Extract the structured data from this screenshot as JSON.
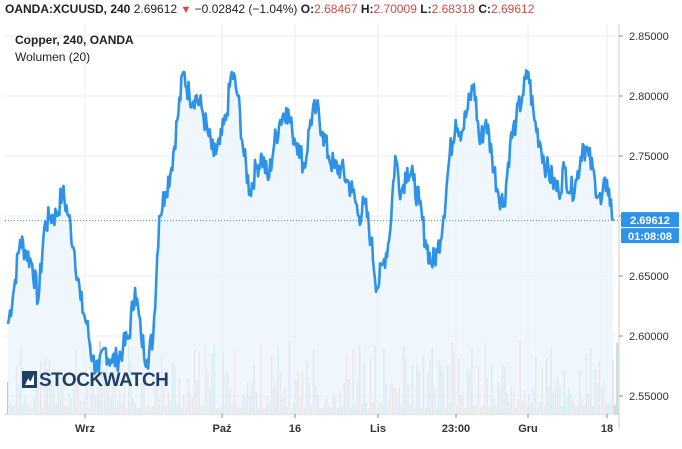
{
  "header": {
    "symbol": "OANDA:XCUUSD, 240",
    "last": "2.69612",
    "change": "−0.02842 (−1.04%)",
    "open_label": "O:",
    "open": "2.68467",
    "high_label": "H:",
    "high": "2.70009",
    "low_label": "L:",
    "low": "2.68318",
    "close_label": "C:",
    "close": "2.69612"
  },
  "legend": {
    "title": "Copper, 240, OANDA",
    "volume": "Wolumen (20)"
  },
  "watermark": "STOCKWATCH",
  "price_badge": "2.69612",
  "timer_badge": "01:08:08",
  "colors": {
    "line": "#2e93e6",
    "area": "#eaf4fc",
    "badge": "#2e93e6",
    "volume_up": "#a9d4d0",
    "volume_down": "#f0b5b2",
    "grid": "#e9eef3"
  },
  "chart_data": {
    "type": "area",
    "title": "Copper, 240, OANDA",
    "x_ticks": [
      "Wrz",
      "Paź",
      "16",
      "Lis",
      "23:00",
      "Gru",
      "18"
    ],
    "y_ticks": [
      2.85,
      2.8,
      2.75,
      2.7,
      2.65,
      2.6,
      2.55
    ],
    "ylim": [
      2.535,
      2.86
    ],
    "y_tick_labels": [
      "2.85000",
      "2.80000",
      "2.75000",
      "2.70000",
      "2.65000",
      "2.60000",
      "2.55000"
    ],
    "last_value": 2.69612,
    "grid": true,
    "series": [
      {
        "name": "Copper",
        "x_range": [
          0,
          100
        ],
        "keypoints": [
          [
            0,
            2.61
          ],
          [
            1,
            2.64
          ],
          [
            2,
            2.68
          ],
          [
            3,
            2.67
          ],
          [
            4,
            2.66
          ],
          [
            5,
            2.63
          ],
          [
            6,
            2.69
          ],
          [
            7,
            2.7
          ],
          [
            8,
            2.7
          ],
          [
            9,
            2.72
          ],
          [
            10,
            2.7
          ],
          [
            11,
            2.67
          ],
          [
            12,
            2.63
          ],
          [
            13,
            2.61
          ],
          [
            14,
            2.58
          ],
          [
            15,
            2.57
          ],
          [
            16,
            2.59
          ],
          [
            17,
            2.58
          ],
          [
            18,
            2.58
          ],
          [
            19,
            2.59
          ],
          [
            20,
            2.6
          ],
          [
            21,
            2.64
          ],
          [
            22,
            2.6
          ],
          [
            23,
            2.58
          ],
          [
            24,
            2.6
          ],
          [
            25,
            2.7
          ],
          [
            26,
            2.72
          ],
          [
            27,
            2.74
          ],
          [
            28,
            2.78
          ],
          [
            29,
            2.82
          ],
          [
            30,
            2.8
          ],
          [
            31,
            2.8
          ],
          [
            32,
            2.79
          ],
          [
            33,
            2.77
          ],
          [
            34,
            2.75
          ],
          [
            35,
            2.76
          ],
          [
            36,
            2.78
          ],
          [
            37,
            2.82
          ],
          [
            38,
            2.8
          ],
          [
            39,
            2.75
          ],
          [
            40,
            2.72
          ],
          [
            41,
            2.74
          ],
          [
            42,
            2.75
          ],
          [
            43,
            2.73
          ],
          [
            44,
            2.76
          ],
          [
            45,
            2.78
          ],
          [
            46,
            2.79
          ],
          [
            47,
            2.77
          ],
          [
            48,
            2.76
          ],
          [
            49,
            2.74
          ],
          [
            50,
            2.78
          ],
          [
            51,
            2.79
          ],
          [
            52,
            2.77
          ],
          [
            53,
            2.75
          ],
          [
            54,
            2.74
          ],
          [
            55,
            2.74
          ],
          [
            56,
            2.73
          ],
          [
            57,
            2.72
          ],
          [
            58,
            2.7
          ],
          [
            59,
            2.71
          ],
          [
            60,
            2.68
          ],
          [
            61,
            2.64
          ],
          [
            62,
            2.66
          ],
          [
            63,
            2.68
          ],
          [
            64,
            2.75
          ],
          [
            65,
            2.72
          ],
          [
            66,
            2.74
          ],
          [
            67,
            2.73
          ],
          [
            68,
            2.71
          ],
          [
            69,
            2.68
          ],
          [
            70,
            2.66
          ],
          [
            71,
            2.67
          ],
          [
            72,
            2.7
          ],
          [
            73,
            2.75
          ],
          [
            74,
            2.78
          ],
          [
            75,
            2.77
          ],
          [
            76,
            2.79
          ],
          [
            77,
            2.81
          ],
          [
            78,
            2.76
          ],
          [
            79,
            2.78
          ],
          [
            80,
            2.75
          ],
          [
            81,
            2.72
          ],
          [
            82,
            2.71
          ],
          [
            83,
            2.76
          ],
          [
            84,
            2.78
          ],
          [
            85,
            2.8
          ],
          [
            86,
            2.82
          ],
          [
            87,
            2.78
          ],
          [
            88,
            2.76
          ],
          [
            89,
            2.74
          ],
          [
            90,
            2.73
          ],
          [
            91,
            2.72
          ],
          [
            92,
            2.74
          ],
          [
            93,
            2.72
          ],
          [
            94,
            2.73
          ],
          [
            95,
            2.76
          ],
          [
            96,
            2.75
          ],
          [
            97,
            2.73
          ],
          [
            98,
            2.71
          ],
          [
            99,
            2.73
          ],
          [
            100,
            2.69612
          ]
        ]
      }
    ]
  }
}
